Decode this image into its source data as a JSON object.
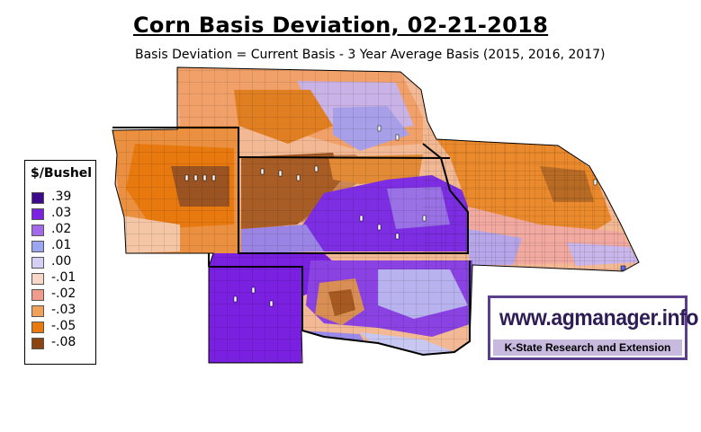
{
  "title": "Corn Basis Deviation, 02-21-2018",
  "subtitle": "Basis Deviation = Current Basis - 3 Year Average Basis (2015, 2016, 2017)",
  "legend": {
    "title": "$/Bushel",
    "items": [
      {
        "label": ".39",
        "color": "#3d0a8c"
      },
      {
        "label": ".03",
        "color": "#7a22e0"
      },
      {
        "label": ".02",
        "color": "#a26ae8"
      },
      {
        "label": ".01",
        "color": "#9aa6ee"
      },
      {
        "label": ".00",
        "color": "#d8d0f4"
      },
      {
        "label": "-.01",
        "color": "#f7d7c7"
      },
      {
        "label": "-.02",
        "color": "#ef9c8c"
      },
      {
        "label": "-.03",
        "color": "#f0a25a"
      },
      {
        "label": "-.05",
        "color": "#e8790d"
      },
      {
        "label": "-.08",
        "color": "#8a4513"
      }
    ]
  },
  "logo": {
    "url": "www.agmanager.info",
    "subtitle": "K-State Research and Extension"
  }
}
